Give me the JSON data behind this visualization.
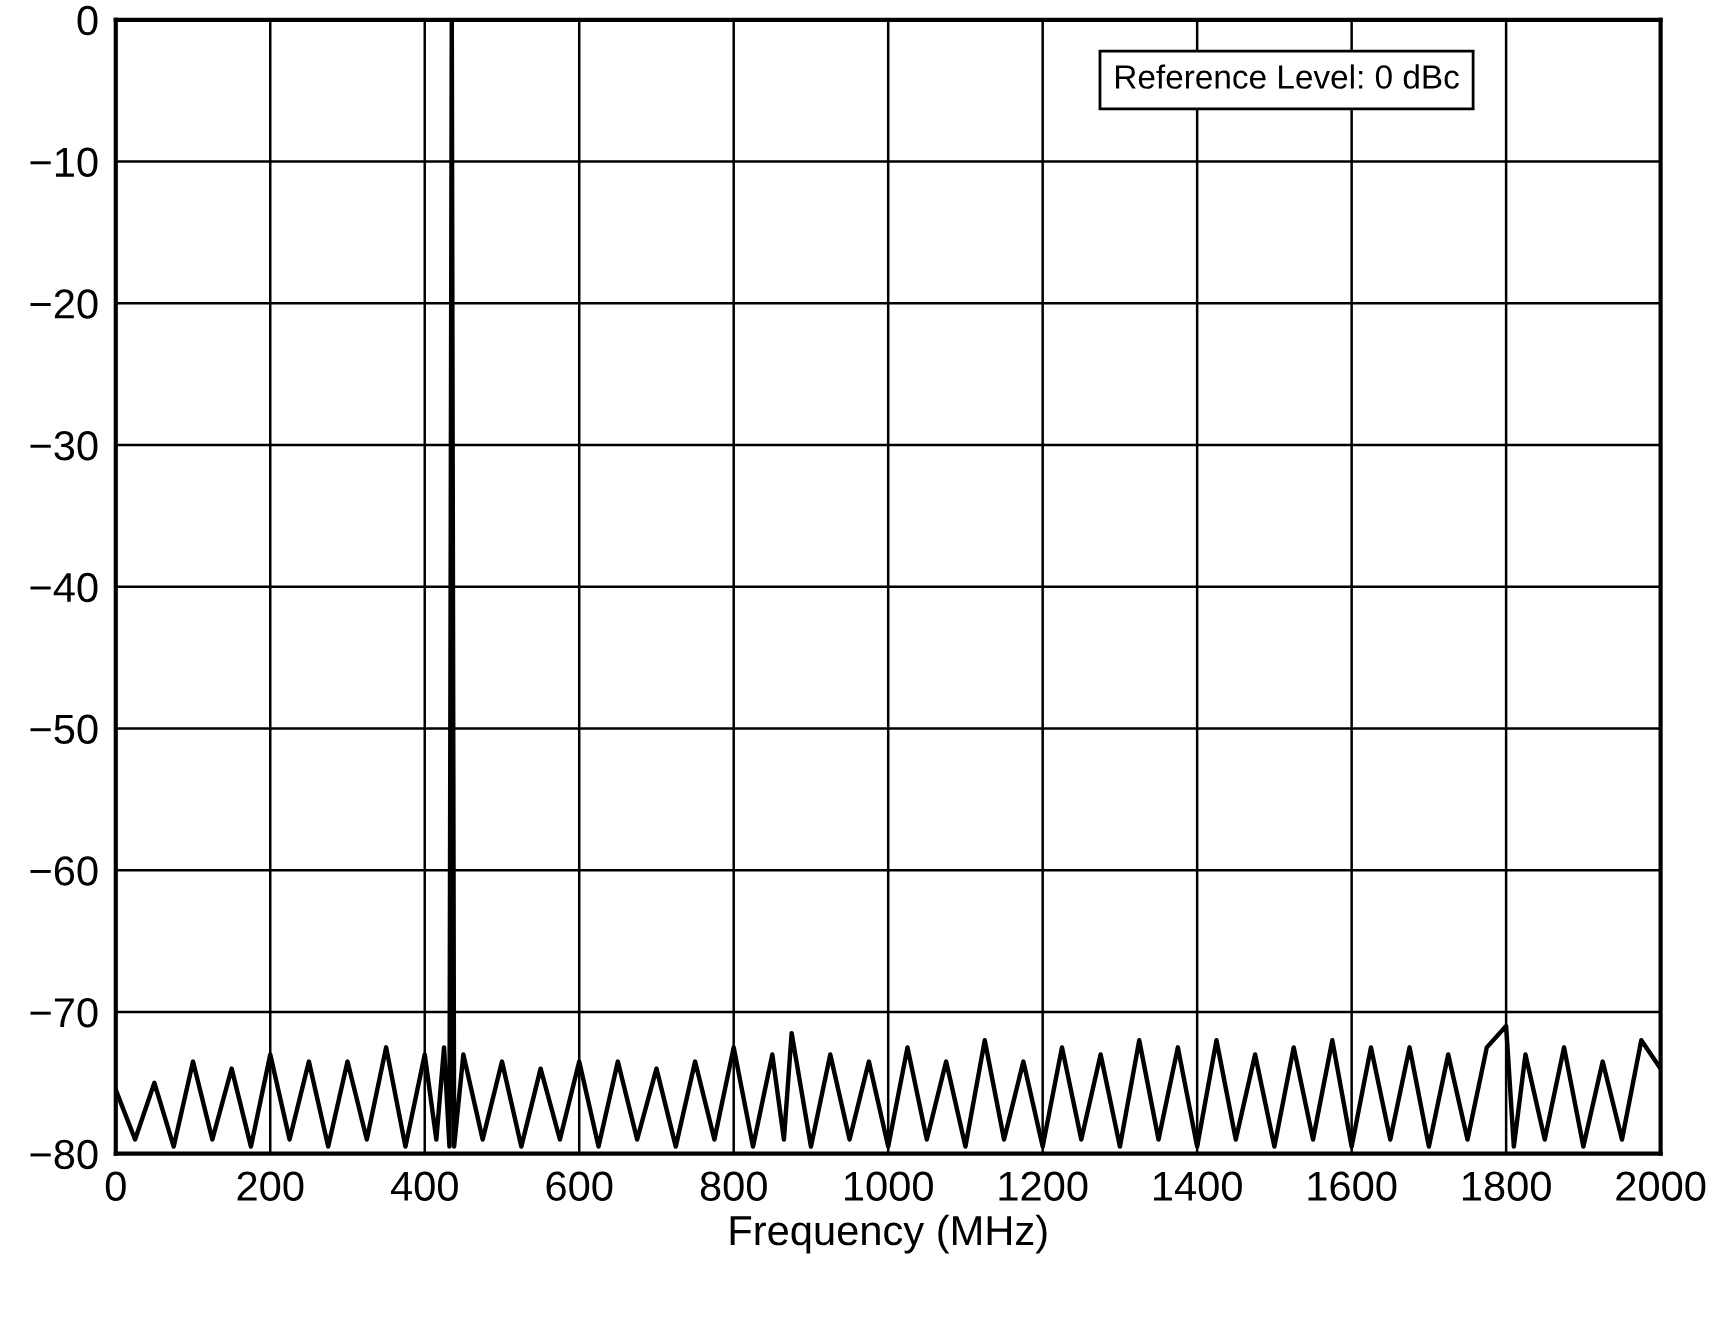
{
  "chart_data": {
    "type": "line",
    "xlabel": "Frequency (MHz)",
    "annotations": [
      "Reference Level: 0 dBc"
    ],
    "xlim": [
      0,
      2000
    ],
    "xticks": [
      0,
      200,
      400,
      600,
      800,
      1000,
      1200,
      1400,
      1600,
      1800,
      2000
    ],
    "ylim": [
      -80,
      0
    ],
    "yticks": [
      0,
      {
        "value": -10,
        "label": "−10"
      },
      {
        "value": -20,
        "label": "−20"
      },
      {
        "value": -30,
        "label": "−30"
      },
      {
        "value": -40,
        "label": "−40"
      },
      {
        "value": -50,
        "label": "−50"
      },
      {
        "value": -60,
        "label": "−60"
      },
      {
        "value": -70,
        "label": "−70"
      },
      {
        "value": -80,
        "label": "−80"
      }
    ],
    "grid": true,
    "marker": "none",
    "line_style": "solid",
    "series": [
      {
        "color": "#000000",
        "x": [
          0,
          25,
          50,
          75,
          100,
          125,
          150,
          175,
          200,
          225,
          250,
          275,
          300,
          325,
          350,
          375,
          400,
          415,
          425,
          432,
          435,
          438,
          450,
          475,
          500,
          525,
          550,
          575,
          600,
          625,
          650,
          675,
          700,
          725,
          750,
          775,
          800,
          825,
          850,
          865,
          875,
          900,
          925,
          950,
          975,
          1000,
          1025,
          1050,
          1075,
          1100,
          1125,
          1150,
          1175,
          1200,
          1225,
          1250,
          1275,
          1300,
          1325,
          1350,
          1375,
          1400,
          1425,
          1450,
          1475,
          1500,
          1525,
          1550,
          1575,
          1600,
          1625,
          1650,
          1675,
          1700,
          1725,
          1750,
          1775,
          1800,
          1810,
          1825,
          1850,
          1875,
          1900,
          1925,
          1950,
          1975,
          2000
        ],
        "values": [
          -75.5,
          -79,
          -75,
          -79.5,
          -73.5,
          -79,
          -74,
          -79.5,
          -73,
          -79,
          -73.5,
          -79.5,
          -73.5,
          -79,
          -72.5,
          -79.5,
          -73,
          -79,
          -72.5,
          -79.5,
          0,
          -79.5,
          -73,
          -79,
          -73.5,
          -79.5,
          -74,
          -79,
          -73.5,
          -79.5,
          -73.5,
          -79,
          -74,
          -79.5,
          -73.5,
          -79,
          -72.5,
          -79.5,
          -73,
          -79,
          -71.5,
          -79.5,
          -73,
          -79,
          -73.5,
          -79.5,
          -72.5,
          -79,
          -73.5,
          -79.5,
          -72,
          -79,
          -73.5,
          -79.5,
          -72.5,
          -79,
          -73,
          -79.5,
          -72,
          -79,
          -72.5,
          -79.5,
          -72,
          -79,
          -73,
          -79.5,
          -72.5,
          -79,
          -72,
          -79.5,
          -72.5,
          -79,
          -72.5,
          -79.5,
          -73,
          -79,
          -72.5,
          -71,
          -79.5,
          -73,
          -79,
          -72.5,
          -79.5,
          -73.5,
          -79,
          -72,
          -74
        ]
      }
    ]
  }
}
